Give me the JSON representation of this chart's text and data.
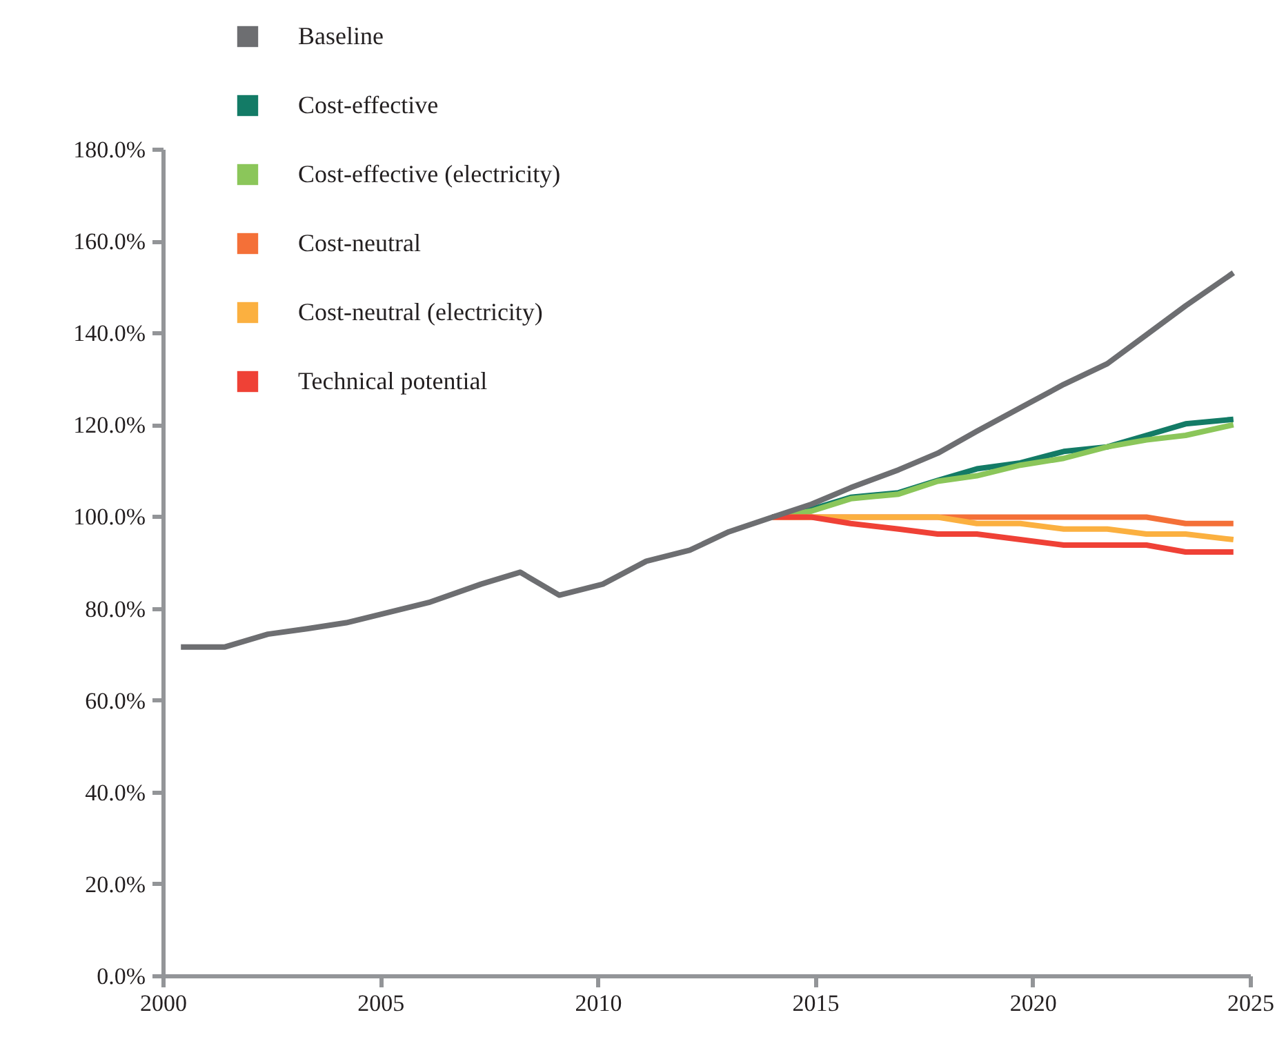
{
  "chart_data": {
    "type": "line",
    "xlim": [
      2000,
      2025
    ],
    "xticks": [
      2000,
      2005,
      2010,
      2015,
      2020,
      2025
    ],
    "ylim": [
      0,
      180
    ],
    "yticks": [
      {
        "value": 0,
        "label": "0.0%"
      },
      {
        "value": 20,
        "label": "20.0%"
      },
      {
        "value": 40,
        "label": "40.0%"
      },
      {
        "value": 60,
        "label": "60.0%"
      },
      {
        "value": 80,
        "label": "80.0%"
      },
      {
        "value": 100,
        "label": "100.0%"
      },
      {
        "value": 120,
        "label": "120.0%"
      },
      {
        "value": 140,
        "label": "140.0%"
      },
      {
        "value": 160,
        "label": "160.0%"
      },
      {
        "value": 180,
        "label": "180.0%"
      }
    ],
    "grid": false,
    "legend": "top left",
    "marker": "none",
    "line_style": "solid",
    "series": [
      {
        "name": "Baseline",
        "color": "#6d6e71",
        "x": [
          2000.4,
          2001.4,
          2002.4,
          2003.3,
          2004.2,
          2005.2,
          2006.1,
          2007.3,
          2008.2,
          2009.1,
          2010.1,
          2011.1,
          2012.1,
          2013.0,
          2014.0,
          2014.9,
          2015.8,
          2016.9,
          2017.8,
          2018.7,
          2019.7,
          2020.7,
          2021.7,
          2022.6,
          2023.5,
          2024.6
        ],
        "values": [
          71.7,
          71.7,
          74.5,
          75.7,
          77.0,
          79.3,
          81.4,
          85.4,
          88.0,
          83.0,
          85.4,
          90.4,
          92.8,
          96.8,
          100,
          102.8,
          106.4,
          110.3,
          113.9,
          118.7,
          123.8,
          128.9,
          133.4,
          139.7,
          146.0,
          153.2
        ]
      },
      {
        "name": "Cost-effective",
        "color": "#137b66",
        "x": [
          2014.0,
          2014.9,
          2015.8,
          2016.9,
          2017.8,
          2018.7,
          2019.7,
          2020.7,
          2021.7,
          2022.6,
          2023.5,
          2024.6
        ],
        "values": [
          100,
          101.7,
          104.3,
          105.3,
          108.0,
          110.5,
          111.8,
          114.3,
          115.3,
          117.8,
          120.3,
          121.3
        ]
      },
      {
        "name": "Cost-effective (electricity)",
        "color": "#8bc65a",
        "x": [
          2014.0,
          2014.9,
          2015.8,
          2016.9,
          2017.8,
          2018.7,
          2019.7,
          2020.7,
          2021.7,
          2022.6,
          2023.5,
          2024.6
        ],
        "values": [
          100,
          101.3,
          104.0,
          105.0,
          107.8,
          109.0,
          111.3,
          112.8,
          115.3,
          116.8,
          117.8,
          120.1
        ]
      },
      {
        "name": "Cost-neutral",
        "color": "#f47038",
        "x": [
          2014.0,
          2014.9,
          2015.8,
          2016.9,
          2017.8,
          2018.7,
          2019.7,
          2020.7,
          2021.7,
          2022.6,
          2023.5,
          2024.6
        ],
        "values": [
          100,
          100,
          100,
          100,
          100,
          100,
          100,
          100,
          100,
          100,
          98.6,
          98.6
        ]
      },
      {
        "name": "Cost-neutral (electricity)",
        "color": "#fbb040",
        "x": [
          2014.0,
          2014.9,
          2015.8,
          2016.9,
          2017.8,
          2018.7,
          2019.7,
          2020.7,
          2021.7,
          2022.6,
          2023.5,
          2024.6
        ],
        "values": [
          100,
          100,
          100,
          100,
          100,
          98.6,
          98.6,
          97.4,
          97.4,
          96.3,
          96.3,
          95.1
        ]
      },
      {
        "name": "Technical potential",
        "color": "#ef4136",
        "x": [
          2014.0,
          2014.9,
          2015.8,
          2016.9,
          2017.8,
          2018.7,
          2019.7,
          2020.7,
          2021.7,
          2022.6,
          2023.5,
          2024.6
        ],
        "values": [
          100,
          100,
          98.6,
          97.4,
          96.3,
          96.3,
          95.1,
          93.9,
          93.9,
          93.9,
          92.4,
          92.4
        ]
      }
    ]
  }
}
